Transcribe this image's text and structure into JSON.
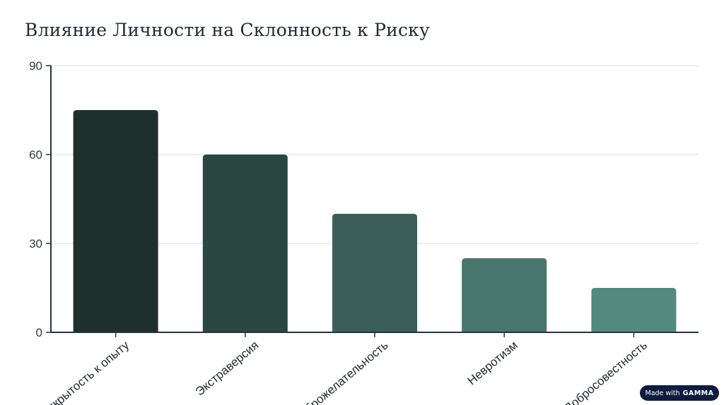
{
  "title": "Влияние Личности на Склонность к Риску",
  "badge": {
    "prefix": "Made with",
    "brand": "GAMMA"
  },
  "chart_data": {
    "type": "bar",
    "categories": [
      "Открытость к опыту",
      "Экстраверсия",
      "Доброжелательность",
      "Невротизм",
      "Добросовестность"
    ],
    "values": [
      75,
      60,
      40,
      25,
      15
    ],
    "ylim": [
      0,
      90
    ],
    "yticks": [
      0,
      30,
      60,
      90
    ],
    "colors": [
      "#1f302c",
      "#2b4742",
      "#3b5f58",
      "#48756c",
      "#538a7e"
    ],
    "grid": true,
    "xlabel": "",
    "ylabel": ""
  }
}
